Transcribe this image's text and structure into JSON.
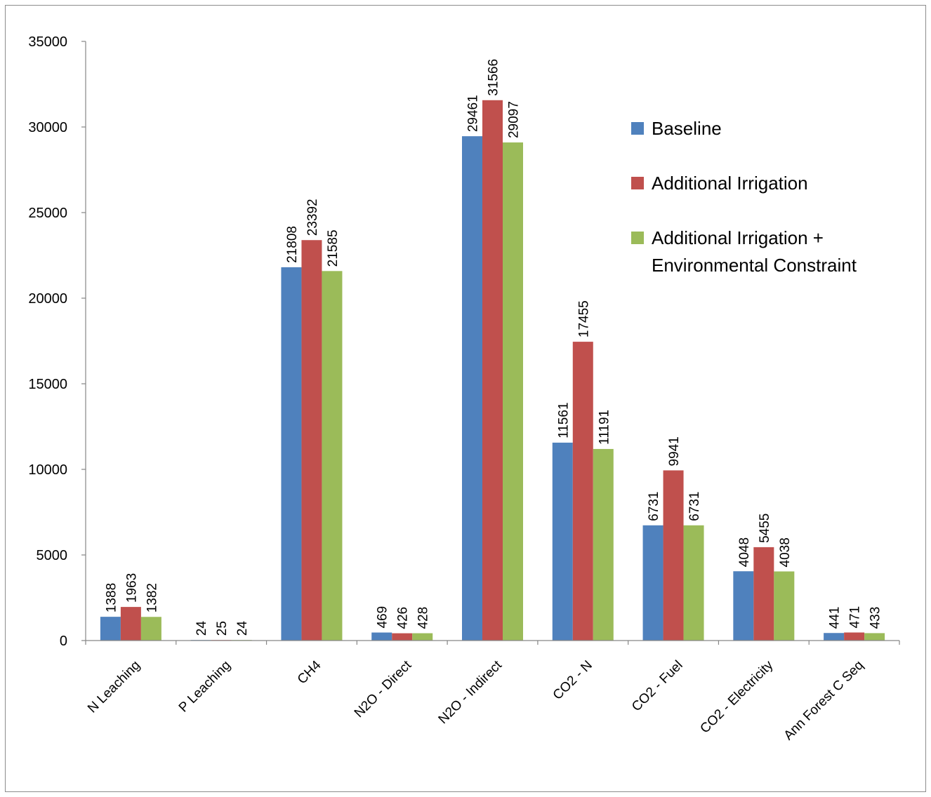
{
  "chart_data": {
    "type": "bar",
    "title": "",
    "xlabel": "",
    "ylabel": "",
    "ylim": [
      0,
      35000
    ],
    "yticks": [
      "0",
      "5000",
      "10000",
      "15000",
      "20000",
      "25000",
      "30000",
      "35000"
    ],
    "grid": false,
    "legend_position": "right",
    "categories": [
      "N Leaching",
      "P Leaching",
      "CH4",
      "N2O - Direct",
      "N2O - Indirect",
      "CO2 - N",
      "CO2 - Fuel",
      "CO2 - Electricity",
      "Ann Forest C Seq"
    ],
    "series": [
      {
        "name": "Baseline",
        "color": "#4f81bd",
        "values": [
          1388,
          24,
          21808,
          469,
          29461,
          11561,
          6731,
          4048,
          441
        ]
      },
      {
        "name": "Additional Irrigation",
        "color": "#c0504d",
        "values": [
          1963,
          25,
          23392,
          426,
          31566,
          17455,
          9941,
          5455,
          471
        ]
      },
      {
        "name": "Additional Irrigation + Environmental Constraint",
        "legend_lines": [
          "Additional Irrigation +",
          "Environmental Constraint"
        ],
        "color": "#9bbb59",
        "values": [
          1382,
          24,
          21585,
          428,
          29097,
          11191,
          6731,
          4038,
          433
        ]
      }
    ]
  }
}
